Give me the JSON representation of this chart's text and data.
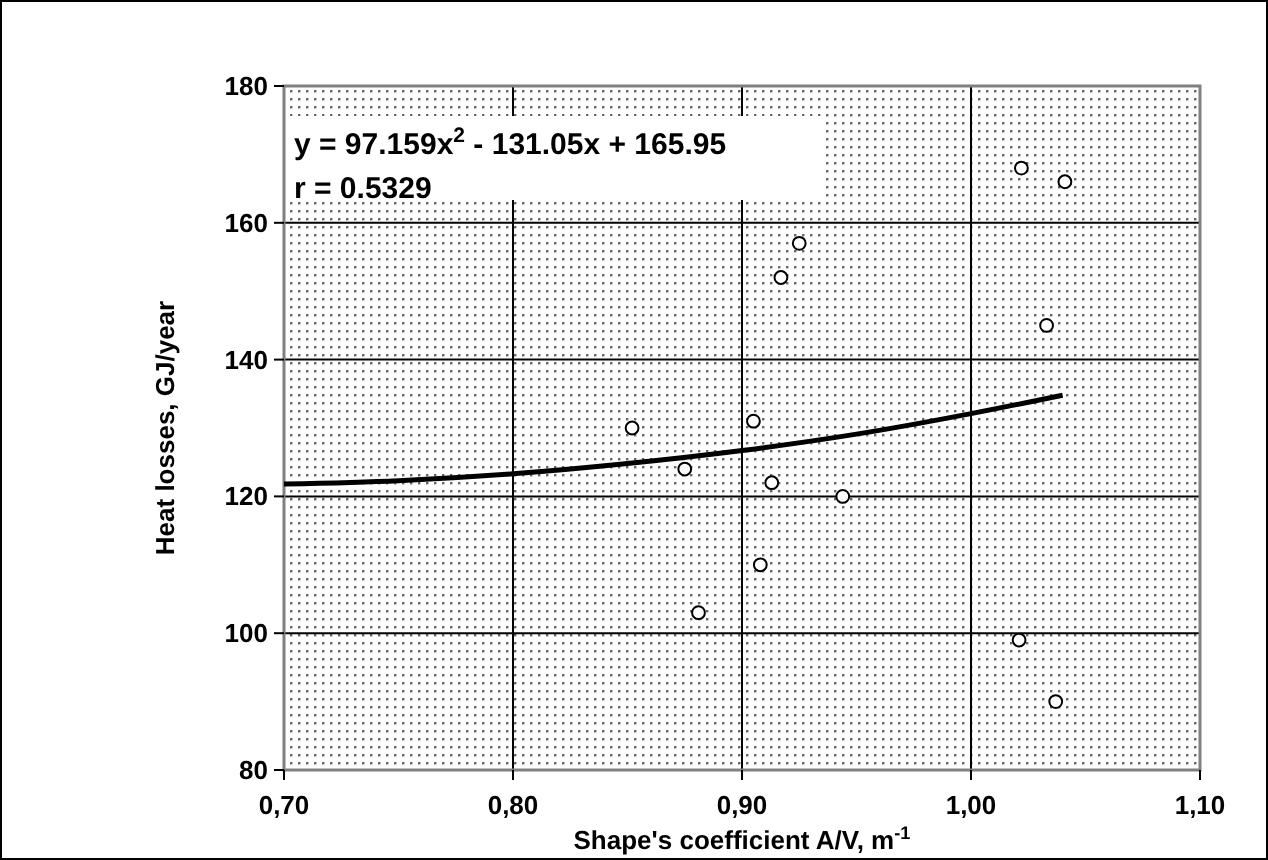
{
  "chart_data": {
    "type": "scatter",
    "xlabel": "Shape's coefficient A/V,  m$^{-1}$",
    "ylabel": "Heat losses, GJ/year",
    "xlim": [
      0.7,
      1.1
    ],
    "xticks": [
      {
        "value": 0.7,
        "label": "0,70"
      },
      {
        "value": 0.8,
        "label": "0,80"
      },
      {
        "value": 0.9,
        "label": "0,90"
      },
      {
        "value": 1.0,
        "label": "1,00"
      },
      {
        "value": 1.1,
        "label": "1,10"
      }
    ],
    "ylim": [
      80,
      180
    ],
    "yticks": [
      80,
      100,
      120,
      140,
      160,
      180
    ],
    "grid": true,
    "marker": "circle",
    "annotations": [
      "y = 97.159x$^{2}$ - 131.05x + 165.95",
      "r = 0.5329"
    ],
    "series": [
      {
        "color": "#000000",
        "x": [
          0.852,
          0.875,
          0.881,
          0.905,
          0.908,
          0.913,
          0.917,
          0.925,
          0.944,
          1.022,
          1.041,
          1.033,
          1.021,
          1.037
        ],
        "values": [
          130,
          124,
          103,
          131,
          110,
          122,
          152,
          157,
          120,
          168,
          166,
          145,
          99,
          90
        ]
      },
      {
        "type": "line",
        "color": "#000000",
        "marker": "none",
        "x": [
          0.7,
          0.75,
          0.8,
          0.85,
          0.9,
          0.95,
          1.0,
          1.04
        ],
        "values": [
          121.8,
          122.3,
          123.3,
          124.8,
          126.7,
          129.1,
          132.1,
          134.8
        ]
      }
    ]
  }
}
